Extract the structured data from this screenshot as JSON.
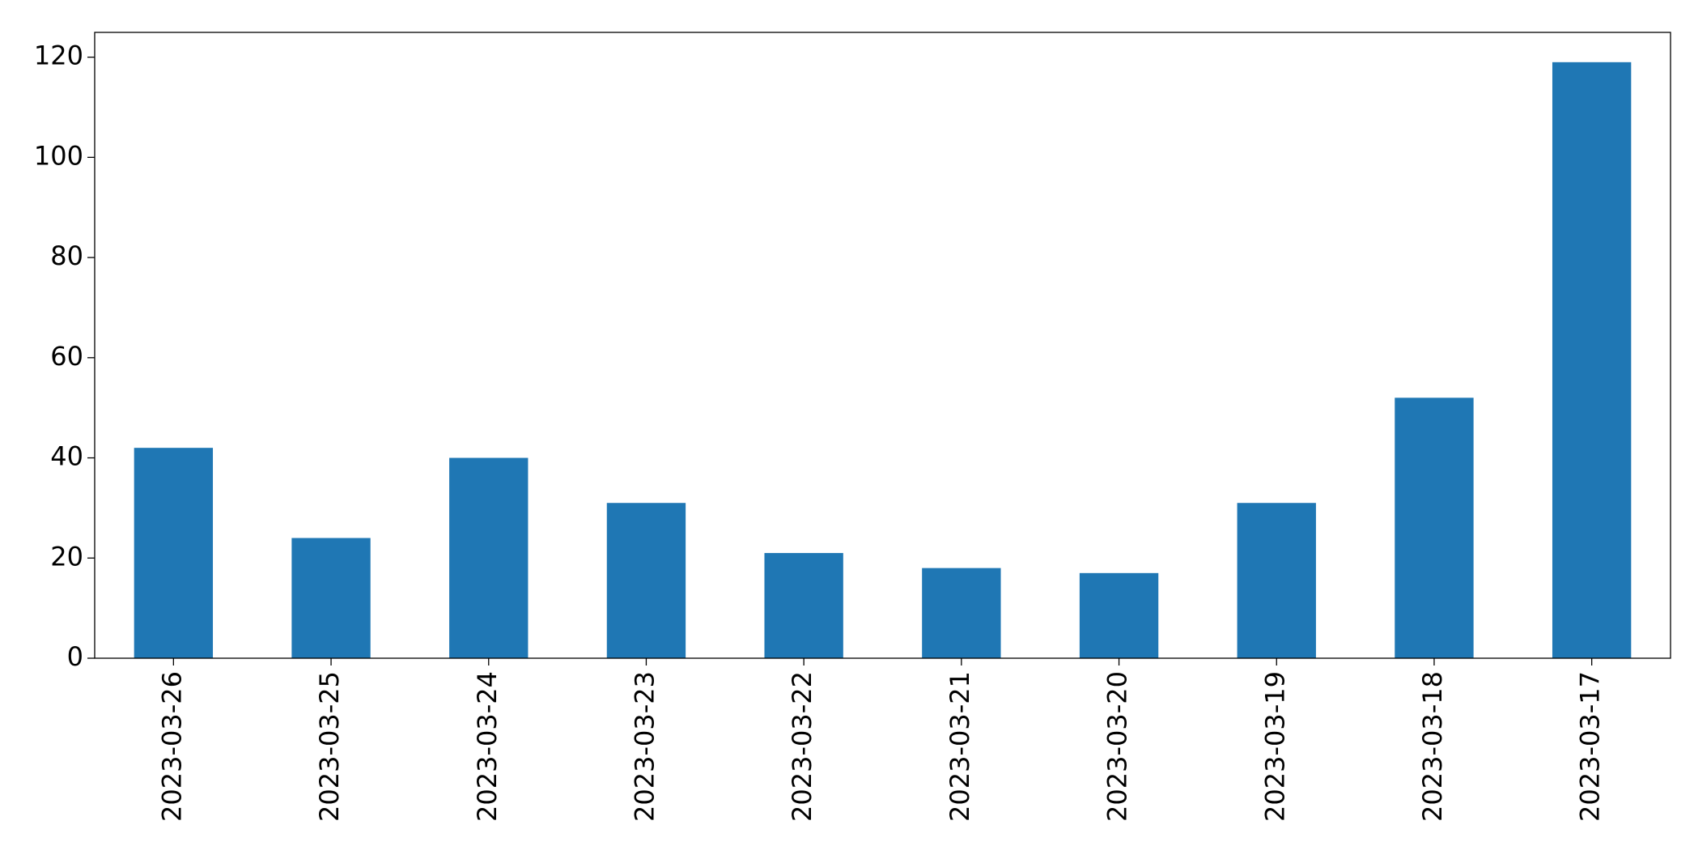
{
  "chart_data": {
    "type": "bar",
    "categories": [
      "2023-03-26",
      "2023-03-25",
      "2023-03-24",
      "2023-03-23",
      "2023-03-22",
      "2023-03-21",
      "2023-03-20",
      "2023-03-19",
      "2023-03-18",
      "2023-03-17"
    ],
    "values": [
      42,
      24,
      40,
      31,
      21,
      18,
      17,
      31,
      52,
      119
    ],
    "color": "#1f77b4",
    "ylim": [
      0,
      124.95
    ],
    "yticks": [
      0,
      20,
      40,
      60,
      80,
      100,
      120
    ],
    "grid": false
  }
}
